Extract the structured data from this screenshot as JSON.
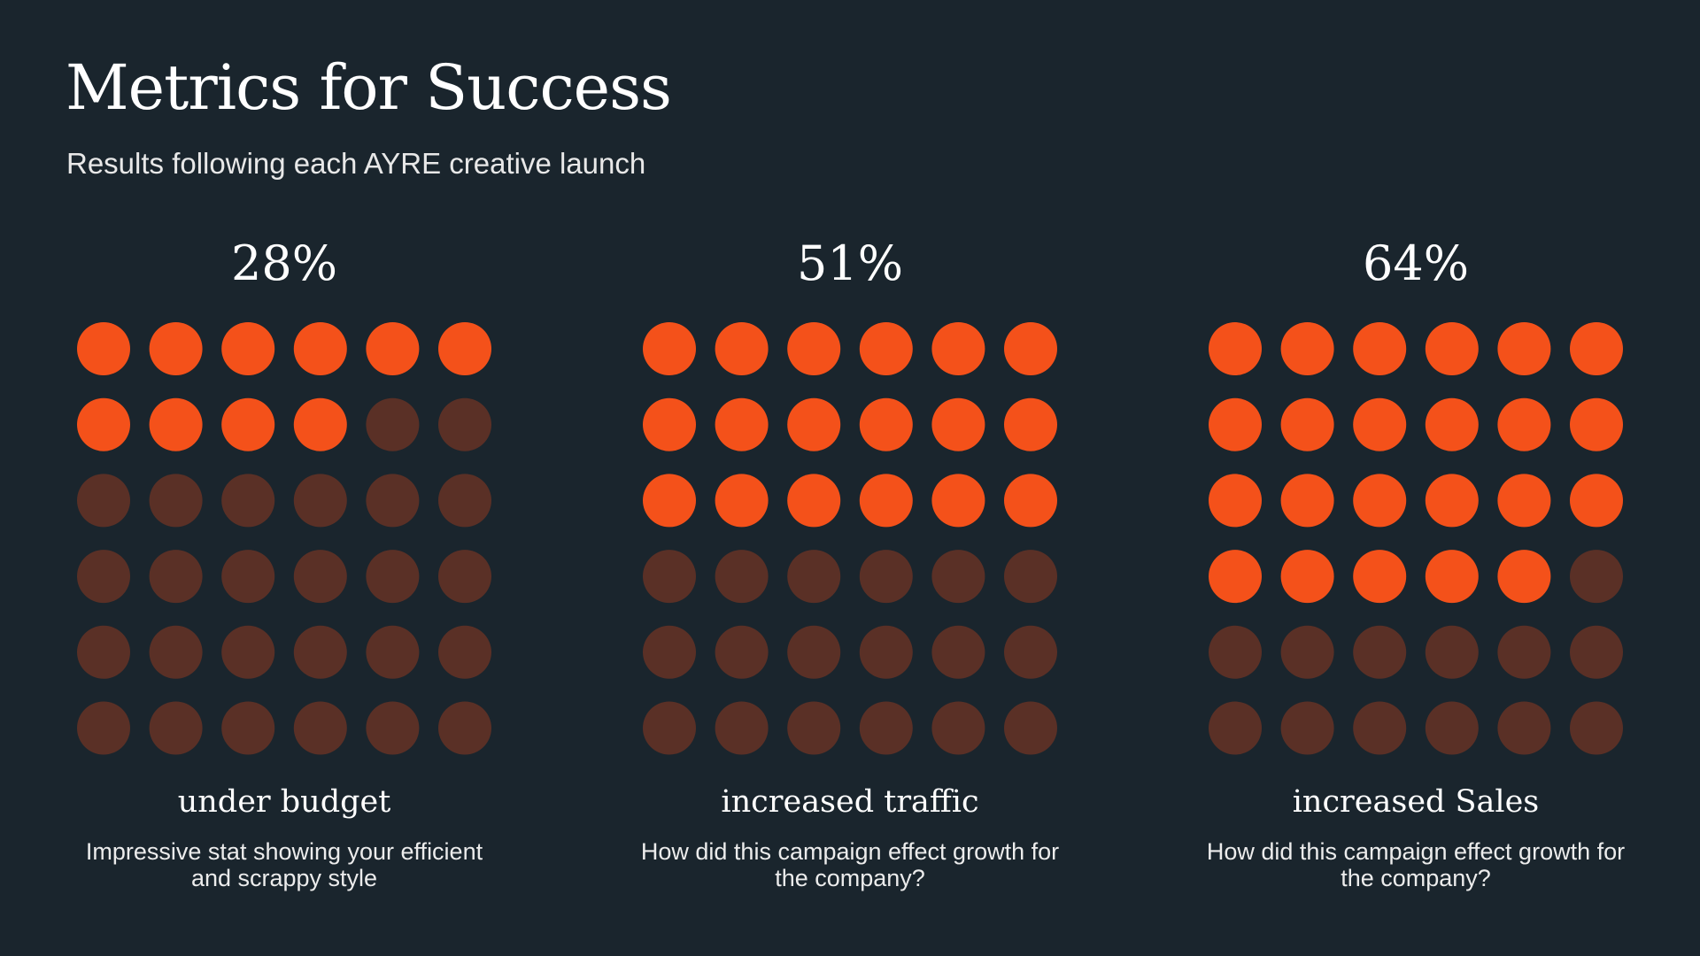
{
  "title": "Metrics for Success",
  "subtitle": "Results following each AYRE creative launch",
  "chart_data": [
    {
      "type": "waffle",
      "values": [
        28
      ],
      "value_labels": [
        "28%"
      ],
      "label": "under budget",
      "description": "Impressive stat showing your efficient and scrappy style",
      "color": "#f4511a",
      "empty_color": "#5a3026",
      "rows": 6,
      "columns": 6
    },
    {
      "type": "waffle",
      "values": [
        51
      ],
      "value_labels": [
        "51%"
      ],
      "label": "increased traffic",
      "description": "How did this campaign effect growth for the company?",
      "color": "#f4511a",
      "empty_color": "#5a3026",
      "rows": 6,
      "columns": 6
    },
    {
      "type": "waffle",
      "values": [
        64
      ],
      "value_labels": [
        "64%"
      ],
      "label": "increased Sales",
      "description": "How did this campaign effect growth for the company?",
      "color": "#f4511a",
      "empty_color": "#5a3026",
      "rows": 6,
      "columns": 6
    }
  ]
}
